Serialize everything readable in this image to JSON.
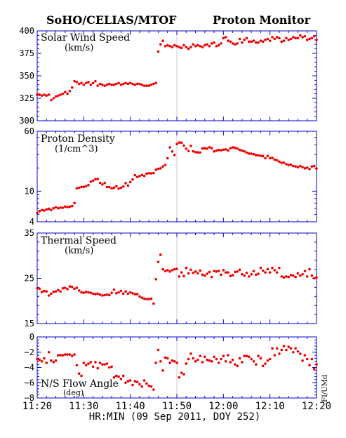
{
  "header": {
    "left": "SoHO/CELIAS/MTOF",
    "right": "Proton Monitor"
  },
  "side_note": "FI/UMd",
  "colors": {
    "points": "#ee0000",
    "axis": "#0000cc",
    "text": "#000000",
    "divider": "#cccccc"
  },
  "chart_data": [
    {
      "type": "scatter",
      "title": "Solar Wind Speed",
      "unit": "(km/s)",
      "ylim": [
        300,
        400
      ],
      "y_scale": "linear",
      "yticks": [
        300,
        325,
        350,
        375,
        400
      ],
      "ytick_labels": [
        "300",
        "325",
        "350",
        "375",
        "400"
      ],
      "x_minutes": [
        0.0,
        0.5,
        1.0,
        1.5,
        2.0,
        2.5,
        3.0,
        3.5,
        4.0,
        4.5,
        5.0,
        5.5,
        6.0,
        6.5,
        7.0,
        7.5,
        8.0,
        8.5,
        9.0,
        9.5,
        10.0,
        10.5,
        11.0,
        11.5,
        12.0,
        12.5,
        13.0,
        13.5,
        14.0,
        14.5,
        15.0,
        15.5,
        16.0,
        16.5,
        17.0,
        17.5,
        18.0,
        18.5,
        19.0,
        19.5,
        20.0,
        20.5,
        21.0,
        21.5,
        22.0,
        22.5,
        23.0,
        23.5,
        24.0,
        24.5,
        25.0,
        25.5,
        26.0,
        26.5,
        27.0,
        27.5,
        28.0,
        28.5,
        29.0,
        29.5,
        30.0,
        30.5,
        31.0,
        31.5,
        32.0,
        32.5,
        33.0,
        33.5,
        34.0,
        34.5,
        35.0,
        35.5,
        36.0,
        36.5,
        37.0,
        37.5,
        38.0,
        38.5,
        39.0,
        39.5,
        40.0,
        40.5,
        41.0,
        41.5,
        42.0,
        42.5,
        43.0,
        43.5,
        44.0,
        44.5,
        45.0,
        45.5,
        46.0,
        46.5,
        47.0,
        47.5,
        48.0,
        48.5,
        49.0,
        49.5,
        50.0,
        50.5,
        51.0,
        51.5,
        52.0,
        52.5,
        53.0,
        53.5,
        54.0,
        54.5,
        55.0,
        55.5,
        56.0,
        56.5,
        57.0,
        57.5,
        58.0,
        58.5,
        59.0,
        59.5,
        60.0
      ],
      "values": [
        329,
        329,
        328,
        329,
        328,
        329,
        323,
        325,
        327,
        328,
        329,
        330,
        332,
        330,
        333,
        337,
        344,
        343,
        341,
        342,
        340,
        342,
        343,
        340,
        342,
        344,
        339,
        341,
        340,
        339,
        340,
        341,
        340,
        340,
        341,
        342,
        340,
        341,
        342,
        341,
        342,
        341,
        340,
        341,
        341,
        340,
        339,
        339,
        339,
        340,
        341,
        342,
        377,
        385,
        389,
        383,
        384,
        383,
        382,
        384,
        383,
        382,
        381,
        384,
        382,
        380,
        382,
        385,
        383,
        384,
        383,
        382,
        384,
        385,
        383,
        386,
        387,
        383,
        384,
        386,
        392,
        393,
        389,
        388,
        386,
        385,
        386,
        391,
        387,
        390,
        392,
        388,
        388,
        389,
        387,
        387,
        389,
        388,
        390,
        391,
        389,
        393,
        391,
        393,
        392,
        388,
        389,
        392,
        390,
        391,
        393,
        392,
        392,
        395,
        393,
        394,
        390,
        391,
        392,
        394,
        390
      ]
    },
    {
      "type": "scatter",
      "title": "Proton Density",
      "unit": "(1/cm^3)",
      "ylim": [
        4,
        60
      ],
      "y_scale": "log",
      "yticks": [
        4,
        10,
        60
      ],
      "ytick_labels": [
        "4",
        "10",
        "60"
      ],
      "x_minutes": [
        0.0,
        0.5,
        1.0,
        1.5,
        2.0,
        2.5,
        3.0,
        3.5,
        4.0,
        4.5,
        5.0,
        5.5,
        6.0,
        6.5,
        7.0,
        7.5,
        8.0,
        8.5,
        9.0,
        9.5,
        10.0,
        10.5,
        11.0,
        11.5,
        12.0,
        12.5,
        13.0,
        13.5,
        14.0,
        14.5,
        15.0,
        15.5,
        16.0,
        16.5,
        17.0,
        17.5,
        18.0,
        18.5,
        19.0,
        19.5,
        20.0,
        20.5,
        21.0,
        21.5,
        22.0,
        22.5,
        23.0,
        23.5,
        24.0,
        24.5,
        25.0,
        25.5,
        26.0,
        26.5,
        27.0,
        27.5,
        28.0,
        28.5,
        29.0,
        29.5,
        30.0,
        30.5,
        31.0,
        31.5,
        32.0,
        32.5,
        33.0,
        33.5,
        34.0,
        34.5,
        35.0,
        35.5,
        36.0,
        36.5,
        37.0,
        37.5,
        38.0,
        38.5,
        39.0,
        39.5,
        40.0,
        40.5,
        41.0,
        41.5,
        42.0,
        42.5,
        43.0,
        43.5,
        44.0,
        44.5,
        45.0,
        45.5,
        46.0,
        46.5,
        47.0,
        47.5,
        48.0,
        48.5,
        49.0,
        49.5,
        50.0,
        50.5,
        51.0,
        51.5,
        52.0,
        52.5,
        53.0,
        53.5,
        54.0,
        54.5,
        55.0,
        55.5,
        56.0,
        56.5,
        57.0,
        57.5,
        58.0,
        58.5,
        59.0,
        59.5,
        60.0
      ],
      "values": [
        5.2,
        5.5,
        5.7,
        5.6,
        5.8,
        5.9,
        5.7,
        6.0,
        6.2,
        6.0,
        6.1,
        6.1,
        6.3,
        6.2,
        6.3,
        6.4,
        7.0,
        10.9,
        11.1,
        11.3,
        11.4,
        11.6,
        12.0,
        13.3,
        13.7,
        14.3,
        14.4,
        12.8,
        12.2,
        12.8,
        11.3,
        11.3,
        10.9,
        11.1,
        11.6,
        10.8,
        11.1,
        11.5,
        12.7,
        11.8,
        13.1,
        14.2,
        16.1,
        15.3,
        15.7,
        16.2,
        15.8,
        16.9,
        17.1,
        17.0,
        17.2,
        19.0,
        19.5,
        19.8,
        20.9,
        21.9,
        26.8,
        37.1,
        32.8,
        29.5,
        41.0,
        42.8,
        42.6,
        39.1,
        35.6,
        33.3,
        38.8,
        33.0,
        32.1,
        31.9,
        31.8,
        35.9,
        36.2,
        35.6,
        37.2,
        36.1,
        32.8,
        33.7,
        34.3,
        34.0,
        34.5,
        34.9,
        33.8,
        36.1,
        37.1,
        36.6,
        35.7,
        34.4,
        33.6,
        32.9,
        31.7,
        30.8,
        30.7,
        30.2,
        29.4,
        29.2,
        28.8,
        28.5,
        26.8,
        28.7,
        26.8,
        27.1,
        25.7,
        25.2,
        24.2,
        23.3,
        23.5,
        22.4,
        21.9,
        22.1,
        21.2,
        20.9,
        20.5,
        21.2,
        20.5,
        19.8,
        20.2,
        19.4,
        20.9,
        21.2,
        19.6
      ]
    },
    {
      "type": "scatter",
      "title": "Thermal Speed",
      "unit": "(km/s)",
      "ylim": [
        15,
        35
      ],
      "y_scale": "linear",
      "yticks": [
        15,
        25,
        35
      ],
      "ytick_labels": [
        "15",
        "25",
        "35"
      ],
      "x_minutes": [
        0.0,
        0.5,
        1.0,
        1.5,
        2.0,
        2.5,
        3.0,
        3.5,
        4.0,
        4.5,
        5.0,
        5.5,
        6.0,
        6.5,
        7.0,
        7.5,
        8.0,
        8.5,
        9.0,
        9.5,
        10.0,
        10.5,
        11.0,
        11.5,
        12.0,
        12.5,
        13.0,
        13.5,
        14.0,
        14.5,
        15.0,
        15.5,
        16.0,
        16.5,
        17.0,
        17.5,
        18.0,
        18.5,
        19.0,
        19.5,
        20.0,
        20.5,
        21.0,
        21.5,
        22.0,
        22.5,
        23.0,
        23.5,
        24.0,
        24.5,
        25.0,
        25.5,
        26.0,
        26.5,
        27.0,
        27.5,
        28.0,
        28.5,
        29.0,
        29.5,
        30.0,
        30.5,
        31.0,
        31.5,
        32.0,
        32.5,
        33.0,
        33.5,
        34.0,
        34.5,
        35.0,
        35.5,
        36.0,
        36.5,
        37.0,
        37.5,
        38.0,
        38.5,
        39.0,
        39.5,
        40.0,
        40.5,
        41.0,
        41.5,
        42.0,
        42.5,
        43.0,
        43.5,
        44.0,
        44.5,
        45.0,
        45.5,
        46.0,
        46.5,
        47.0,
        47.5,
        48.0,
        48.5,
        49.0,
        49.5,
        50.0,
        50.5,
        51.0,
        51.5,
        52.0,
        52.5,
        53.0,
        53.5,
        54.0,
        54.5,
        55.0,
        55.5,
        56.0,
        56.5,
        57.0,
        57.5,
        58.0,
        58.5,
        59.0,
        59.5,
        60.0
      ],
      "values": [
        22.8,
        22.7,
        22.0,
        22.2,
        22.1,
        21.2,
        21.6,
        22.0,
        22.1,
        22.4,
        22.1,
        22.8,
        22.9,
        22.6,
        23.2,
        23.1,
        22.7,
        22.9,
        22.3,
        21.9,
        21.8,
        22.0,
        21.9,
        21.8,
        21.6,
        21.5,
        21.6,
        21.4,
        21.2,
        21.3,
        21.4,
        21.3,
        21.8,
        22.5,
        21.7,
        21.9,
        22.2,
        21.6,
        22.1,
        21.6,
        21.9,
        21.7,
        21.5,
        21.5,
        21.0,
        20.7,
        20.5,
        20.4,
        20.4,
        20.5,
        19.4,
        24.8,
        28.6,
        30.2,
        27.0,
        26.6,
        26.8,
        26.5,
        26.8,
        27.0,
        27.1,
        25.4,
        26.3,
        25.5,
        27.3,
        26.1,
        26.9,
        26.2,
        26.5,
        26.1,
        26.7,
        25.8,
        25.6,
        26.0,
        26.4,
        25.3,
        26.6,
        26.5,
        26.6,
        25.8,
        26.8,
        26.3,
        26.3,
        25.5,
        25.7,
        26.4,
        26.5,
        26.9,
        25.9,
        25.6,
        26.2,
        25.4,
        25.9,
        26.6,
        25.8,
        26.0,
        27.3,
        26.7,
        26.3,
        27.0,
        26.3,
        27.3,
        26.8,
        26.3,
        27.3,
        25.4,
        25.2,
        25.4,
        25.3,
        25.7,
        25.6,
        25.3,
        26.1,
        25.6,
        25.9,
        26.6,
        25.4,
        27.0,
        25.6,
        25.0,
        25.2
      ]
    },
    {
      "type": "scatter",
      "title": "N/S Flow Angle",
      "unit": "(deg)",
      "ylim": [
        -8,
        0
      ],
      "y_scale": "linear",
      "yticks": [
        -8,
        -6,
        -4,
        -2,
        0
      ],
      "ytick_labels": [
        "−8",
        "−6",
        "−4",
        "−2",
        "0"
      ],
      "x_minutes": [
        0.0,
        0.5,
        1.0,
        1.5,
        2.0,
        2.5,
        3.0,
        3.5,
        4.0,
        4.5,
        5.0,
        5.5,
        6.0,
        6.5,
        7.0,
        7.5,
        8.0,
        8.5,
        9.0,
        9.5,
        10.0,
        10.5,
        11.0,
        11.5,
        12.0,
        12.5,
        13.0,
        13.5,
        14.0,
        14.5,
        15.0,
        15.5,
        16.0,
        16.5,
        17.0,
        17.5,
        18.0,
        18.5,
        19.0,
        19.5,
        20.0,
        20.5,
        21.0,
        21.5,
        22.0,
        22.5,
        23.0,
        23.5,
        24.0,
        24.5,
        25.0,
        25.5,
        26.0,
        26.5,
        27.0,
        27.5,
        28.0,
        28.5,
        29.0,
        29.5,
        30.0,
        30.5,
        31.0,
        31.5,
        32.0,
        32.5,
        33.0,
        33.5,
        34.0,
        34.5,
        35.0,
        35.5,
        36.0,
        36.5,
        37.0,
        37.5,
        38.0,
        38.5,
        39.0,
        39.5,
        40.0,
        40.5,
        41.0,
        41.5,
        42.0,
        42.5,
        43.0,
        43.5,
        44.0,
        44.5,
        45.0,
        45.5,
        46.0,
        46.5,
        47.0,
        47.5,
        48.0,
        48.5,
        49.0,
        49.5,
        50.0,
        50.5,
        51.0,
        51.5,
        52.0,
        52.5,
        53.0,
        53.5,
        54.0,
        54.5,
        55.0,
        55.5,
        56.0,
        56.5,
        57.0,
        57.5,
        58.0,
        58.5,
        59.0,
        59.5,
        60.0
      ],
      "values": [
        -2.9,
        -3.0,
        -3.2,
        -2.8,
        -3.4,
        -2.0,
        -3.1,
        -3.3,
        -3.1,
        -2.4,
        -2.4,
        -2.4,
        -2.3,
        -2.3,
        -2.3,
        -2.5,
        -2.3,
        -3.7,
        -4.8,
        -5.1,
        -3.4,
        -3.7,
        -3.5,
        -3.3,
        -3.9,
        -3.3,
        -4.1,
        -3.4,
        -3.6,
        -3.6,
        -3.5,
        -4.0,
        -3.9,
        -5.3,
        -5.1,
        -5.2,
        -5.5,
        -5.1,
        -6.0,
        -5.8,
        -5.7,
        -6.3,
        -5.8,
        -5.9,
        -6.2,
        -6.5,
        -5.7,
        -6.1,
        -6.4,
        -6.5,
        -6.9,
        -3.4,
        -1.7,
        -3.2,
        -4.4,
        -2.7,
        -2.8,
        -3.4,
        -3.1,
        -3.2,
        -3.4,
        -5.3,
        -4.7,
        -4.9,
        -3.5,
        -2.9,
        -2.2,
        -2.8,
        -3.2,
        -3.0,
        -2.5,
        -3.3,
        -2.6,
        -3.0,
        -3.1,
        -3.2,
        -2.6,
        -2.9,
        -3.4,
        -2.9,
        -2.5,
        -3.2,
        -2.4,
        -3.3,
        -3.0,
        -3.6,
        -3.8,
        -2.8,
        -3.3,
        -2.5,
        -2.5,
        -2.6,
        -2.9,
        -3.2,
        -3.6,
        -2.5,
        -2.8,
        -3.8,
        -3.5,
        -3.1,
        -2.9,
        -1.5,
        -2.4,
        -1.5,
        -2.2,
        -1.7,
        -1.2,
        -1.7,
        -1.3,
        -1.5,
        -2.0,
        -1.5,
        -1.9,
        -2.2,
        -3.1,
        -2.4,
        -2.9,
        -3.7,
        -2.9,
        -4.2,
        -3.6
      ]
    }
  ],
  "x_axis": {
    "label": "HR:MIN (09 Sep 2011, DOY 252)",
    "start": "11:20",
    "end": "12:20",
    "ticks": [
      {
        "minute": 0,
        "label": "11:20"
      },
      {
        "minute": 10,
        "label": "11:30"
      },
      {
        "minute": 20,
        "label": "11:40"
      },
      {
        "minute": 30,
        "label": "11:50"
      },
      {
        "minute": 40,
        "label": "12:00"
      },
      {
        "minute": 50,
        "label": "12:10"
      },
      {
        "minute": 60,
        "label": "12:20"
      }
    ],
    "divider_at_label": "11:50"
  }
}
